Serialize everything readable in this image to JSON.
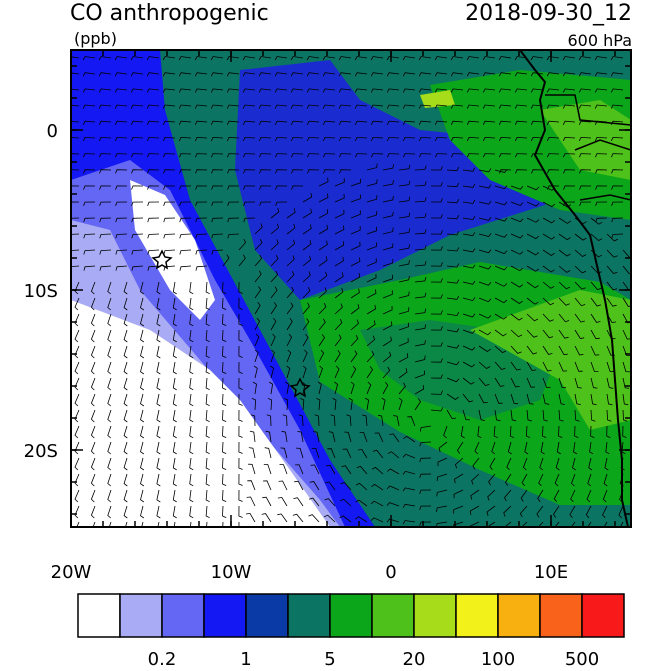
{
  "header": {
    "title": "CO anthropogenic",
    "units": "(ppb)",
    "time": "2018-09-30_12",
    "level": "600 hPa"
  },
  "axes": {
    "x_ticks": [
      "20W",
      "10W",
      "0",
      "10E"
    ],
    "y_ticks": [
      "0",
      "10S",
      "20S"
    ]
  },
  "colorbar": {
    "colors": [
      "#ffffff",
      "#a9acf5",
      "#6466f4",
      "#1418f2",
      "#0a3aa6",
      "#0c7462",
      "#0ca61a",
      "#4ec21a",
      "#a6dc1a",
      "#f2f21a",
      "#f8b010",
      "#f8621a",
      "#f81a1a"
    ],
    "labels": [
      "0.2",
      "1",
      "5",
      "20",
      "100",
      "500"
    ]
  }
}
